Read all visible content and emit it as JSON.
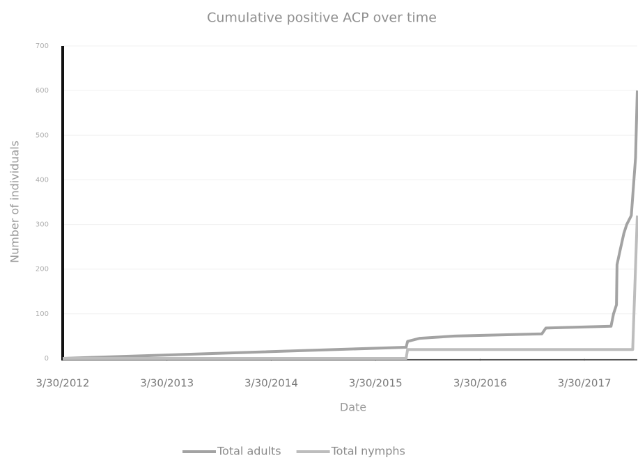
{
  "chart_data": {
    "type": "line",
    "title": "Cumulative positive ACP over time",
    "x_label": "Date",
    "y_label": "Number of individuals",
    "xlim": [
      "3/30/2012",
      "10/1/2017"
    ],
    "xticks": [
      "3/30/2012",
      "3/30/2013",
      "3/30/2014",
      "3/30/2015",
      "3/30/2016",
      "3/30/2017"
    ],
    "ylim": [
      0,
      700
    ],
    "yticks": [
      0,
      100,
      200,
      300,
      400,
      500,
      600,
      700
    ],
    "grid": true,
    "legend": "bottom",
    "series": [
      {
        "name": "Total adults",
        "color": "#a3a3a3",
        "x": [
          "3/30/2012",
          "7/15/2015",
          "7/20/2015",
          "9/1/2015",
          "1/1/2016",
          "11/1/2016",
          "11/15/2016",
          "7/1/2017",
          "7/10/2017",
          "7/20/2017",
          "7/22/2017",
          "8/1/2017",
          "8/15/2017",
          "8/25/2017",
          "9/10/2017",
          "9/25/2017",
          "10/1/2017"
        ],
        "values": [
          0,
          25,
          38,
          45,
          50,
          55,
          68,
          72,
          100,
          120,
          210,
          240,
          280,
          300,
          320,
          450,
          600
        ]
      },
      {
        "name": "Total nymphs",
        "color": "#bdbdbd",
        "x": [
          "3/30/2012",
          "7/15/2015",
          "7/20/2015",
          "9/15/2017",
          "10/1/2017"
        ],
        "values": [
          0,
          0,
          20,
          20,
          320
        ]
      }
    ]
  }
}
